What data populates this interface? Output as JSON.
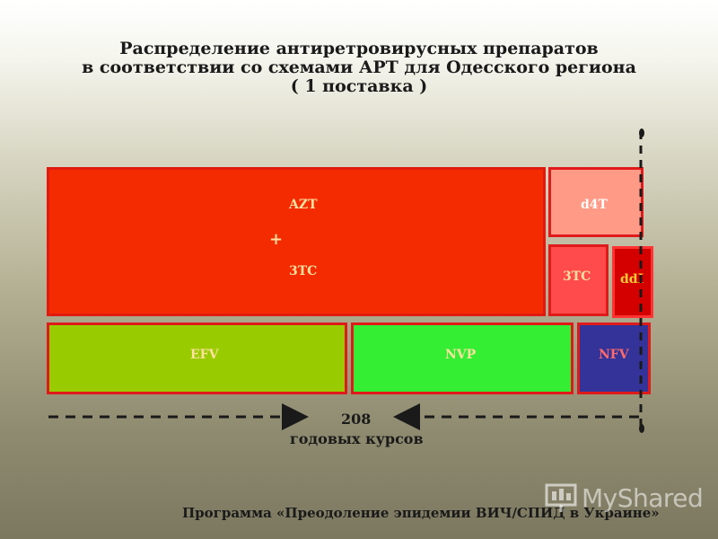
{
  "title": {
    "line1": "Распределение антиретровирусных препаратов",
    "line2": "в соответствии со схемами АРТ для Одесского региона",
    "line3": "( 1 поставка )"
  },
  "blocks": {
    "azt_label": "AZT",
    "plus_label": "+",
    "tc_main_label": "3TC",
    "d4t_label": "d4T",
    "tc_small_label": "3TC",
    "ddi_label": "ddI",
    "efv_label": "EFV",
    "nvp_label": "NVP",
    "nfv_label": "NFV"
  },
  "courses": {
    "count": "208",
    "label": "годовых курсов"
  },
  "footer": "Программа «Преодоление эпидемии ВИЧ/СПИД в Украине»",
  "watermark": "MyShared",
  "colors": {
    "azt": "#f52b00",
    "d4t": "#ff9a86",
    "tc_small": "#ff4b4b",
    "ddi": "#d40000",
    "efv": "#99cc00",
    "nvp": "#33ee33",
    "nfv": "#333399"
  }
}
